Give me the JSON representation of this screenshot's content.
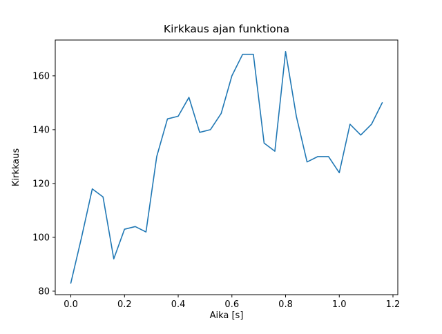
{
  "chart_data": {
    "type": "line",
    "title": "Kirkkaus ajan funktiona",
    "xlabel": "Aika [s]",
    "ylabel": "Kirkkaus",
    "x": [
      0.0,
      0.04,
      0.08,
      0.12,
      0.16,
      0.2,
      0.24,
      0.28,
      0.32,
      0.36,
      0.4,
      0.44,
      0.48,
      0.52,
      0.56,
      0.6,
      0.64,
      0.68,
      0.72,
      0.76,
      0.8,
      0.84,
      0.88,
      0.92,
      0.96,
      1.0,
      1.04,
      1.08,
      1.12,
      1.16
    ],
    "y": [
      83,
      100,
      118,
      115,
      92,
      103,
      104,
      102,
      130,
      144,
      145,
      152,
      139,
      140,
      146,
      160,
      168,
      168,
      135,
      132,
      169,
      145,
      128,
      130,
      130,
      124,
      142,
      138,
      142,
      150
    ],
    "xlim": [
      -0.058,
      1.218
    ],
    "ylim": [
      78.7,
      173.3
    ],
    "xticks": [
      0.0,
      0.2,
      0.4,
      0.6,
      0.8,
      1.0,
      1.2
    ],
    "xtick_labels": [
      "0.0",
      "0.2",
      "0.4",
      "0.6",
      "0.8",
      "1.0",
      "1.2"
    ],
    "yticks": [
      80,
      100,
      120,
      140,
      160
    ],
    "ytick_labels": [
      "80",
      "100",
      "120",
      "140",
      "160"
    ],
    "line_color": "#1f77b4",
    "spine_color": "#000000",
    "grid": false,
    "legend_position": "none"
  }
}
